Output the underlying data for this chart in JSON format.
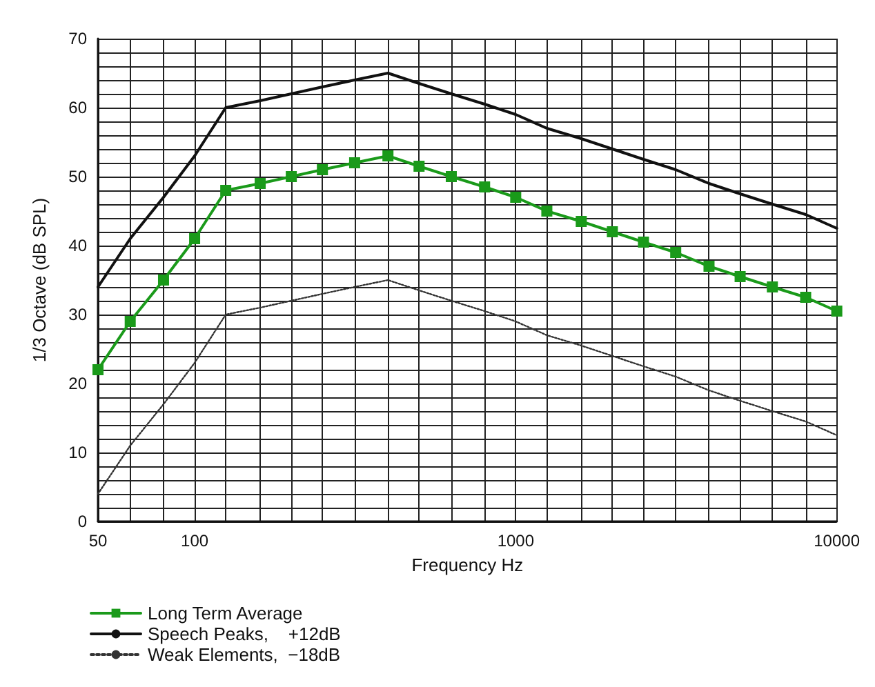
{
  "chart_data": {
    "type": "line",
    "xlabel": "Frequency Hz",
    "ylabel": "1/3 Octave (dB SPL)",
    "x": [
      50,
      63,
      80,
      100,
      125,
      160,
      200,
      250,
      315,
      400,
      500,
      630,
      800,
      1000,
      1250,
      1600,
      2000,
      2500,
      3150,
      4000,
      5000,
      6300,
      8000,
      10000
    ],
    "series": [
      {
        "name": "Long Term Average",
        "color": "#1a9a1a",
        "marker": "square",
        "line_style": "solid",
        "values": [
          22,
          29,
          35,
          41,
          48,
          49,
          50,
          51,
          52,
          53,
          51.5,
          50,
          48.5,
          47,
          45,
          43.5,
          42,
          40.5,
          39,
          37,
          35.5,
          34,
          32.5,
          30.5
        ]
      },
      {
        "name": "Speech Peaks,    +12dB",
        "color": "#111111",
        "marker": "none",
        "line_style": "solid",
        "values": [
          34,
          41,
          47,
          53,
          60,
          61,
          62,
          63,
          64,
          65,
          63.5,
          62,
          60.5,
          59,
          57,
          55.5,
          54,
          52.5,
          51,
          49,
          47.5,
          46,
          44.5,
          42.5
        ]
      },
      {
        "name": "Weak Elements,  −18dB",
        "color": "#333333",
        "marker": "none",
        "line_style": "dotted",
        "values": [
          4,
          11,
          17,
          23,
          30,
          31,
          32,
          33,
          34,
          35,
          33.5,
          32,
          30.5,
          29,
          27,
          25.5,
          24,
          22.5,
          21,
          19,
          17.5,
          16,
          14.5,
          12.5
        ]
      }
    ],
    "log": "x",
    "xlim": [
      50,
      10000
    ],
    "xticks": [
      50,
      {
        "value": 63,
        "label": null
      },
      {
        "value": 80,
        "label": null
      },
      100,
      {
        "value": 125,
        "label": null
      },
      {
        "value": 160,
        "label": null
      },
      {
        "value": 200,
        "label": null
      },
      {
        "value": 250,
        "label": null
      },
      {
        "value": 315,
        "label": null
      },
      {
        "value": 400,
        "label": null
      },
      {
        "value": 500,
        "label": null
      },
      {
        "value": 630,
        "label": null
      },
      {
        "value": 800,
        "label": null
      },
      1000,
      {
        "value": 1250,
        "label": null
      },
      {
        "value": 1600,
        "label": null
      },
      {
        "value": 2000,
        "label": null
      },
      {
        "value": 2500,
        "label": null
      },
      {
        "value": 3150,
        "label": null
      },
      {
        "value": 4000,
        "label": null
      },
      {
        "value": 5000,
        "label": null
      },
      {
        "value": 6300,
        "label": null
      },
      {
        "value": 8000,
        "label": null
      },
      10000
    ],
    "ylim": [
      0,
      70
    ],
    "yticks": [
      0,
      {
        "value": 2,
        "label": null
      },
      {
        "value": 4,
        "label": null
      },
      {
        "value": 6,
        "label": null
      },
      {
        "value": 8,
        "label": null
      },
      10,
      {
        "value": 12,
        "label": null
      },
      {
        "value": 14,
        "label": null
      },
      {
        "value": 16,
        "label": null
      },
      {
        "value": 18,
        "label": null
      },
      20,
      {
        "value": 22,
        "label": null
      },
      {
        "value": 24,
        "label": null
      },
      {
        "value": 26,
        "label": null
      },
      {
        "value": 28,
        "label": null
      },
      30,
      {
        "value": 32,
        "label": null
      },
      {
        "value": 34,
        "label": null
      },
      {
        "value": 36,
        "label": null
      },
      {
        "value": 38,
        "label": null
      },
      40,
      {
        "value": 42,
        "label": null
      },
      {
        "value": 44,
        "label": null
      },
      {
        "value": 46,
        "label": null
      },
      {
        "value": 48,
        "label": null
      },
      50,
      {
        "value": 52,
        "label": null
      },
      {
        "value": 54,
        "label": null
      },
      {
        "value": 56,
        "label": null
      },
      {
        "value": 58,
        "label": null
      },
      60,
      {
        "value": 62,
        "label": null
      },
      {
        "value": 64,
        "label": null
      },
      {
        "value": 66,
        "label": null
      },
      {
        "value": 68,
        "label": null
      },
      70
    ],
    "grid": true,
    "legend": "bottom left"
  }
}
